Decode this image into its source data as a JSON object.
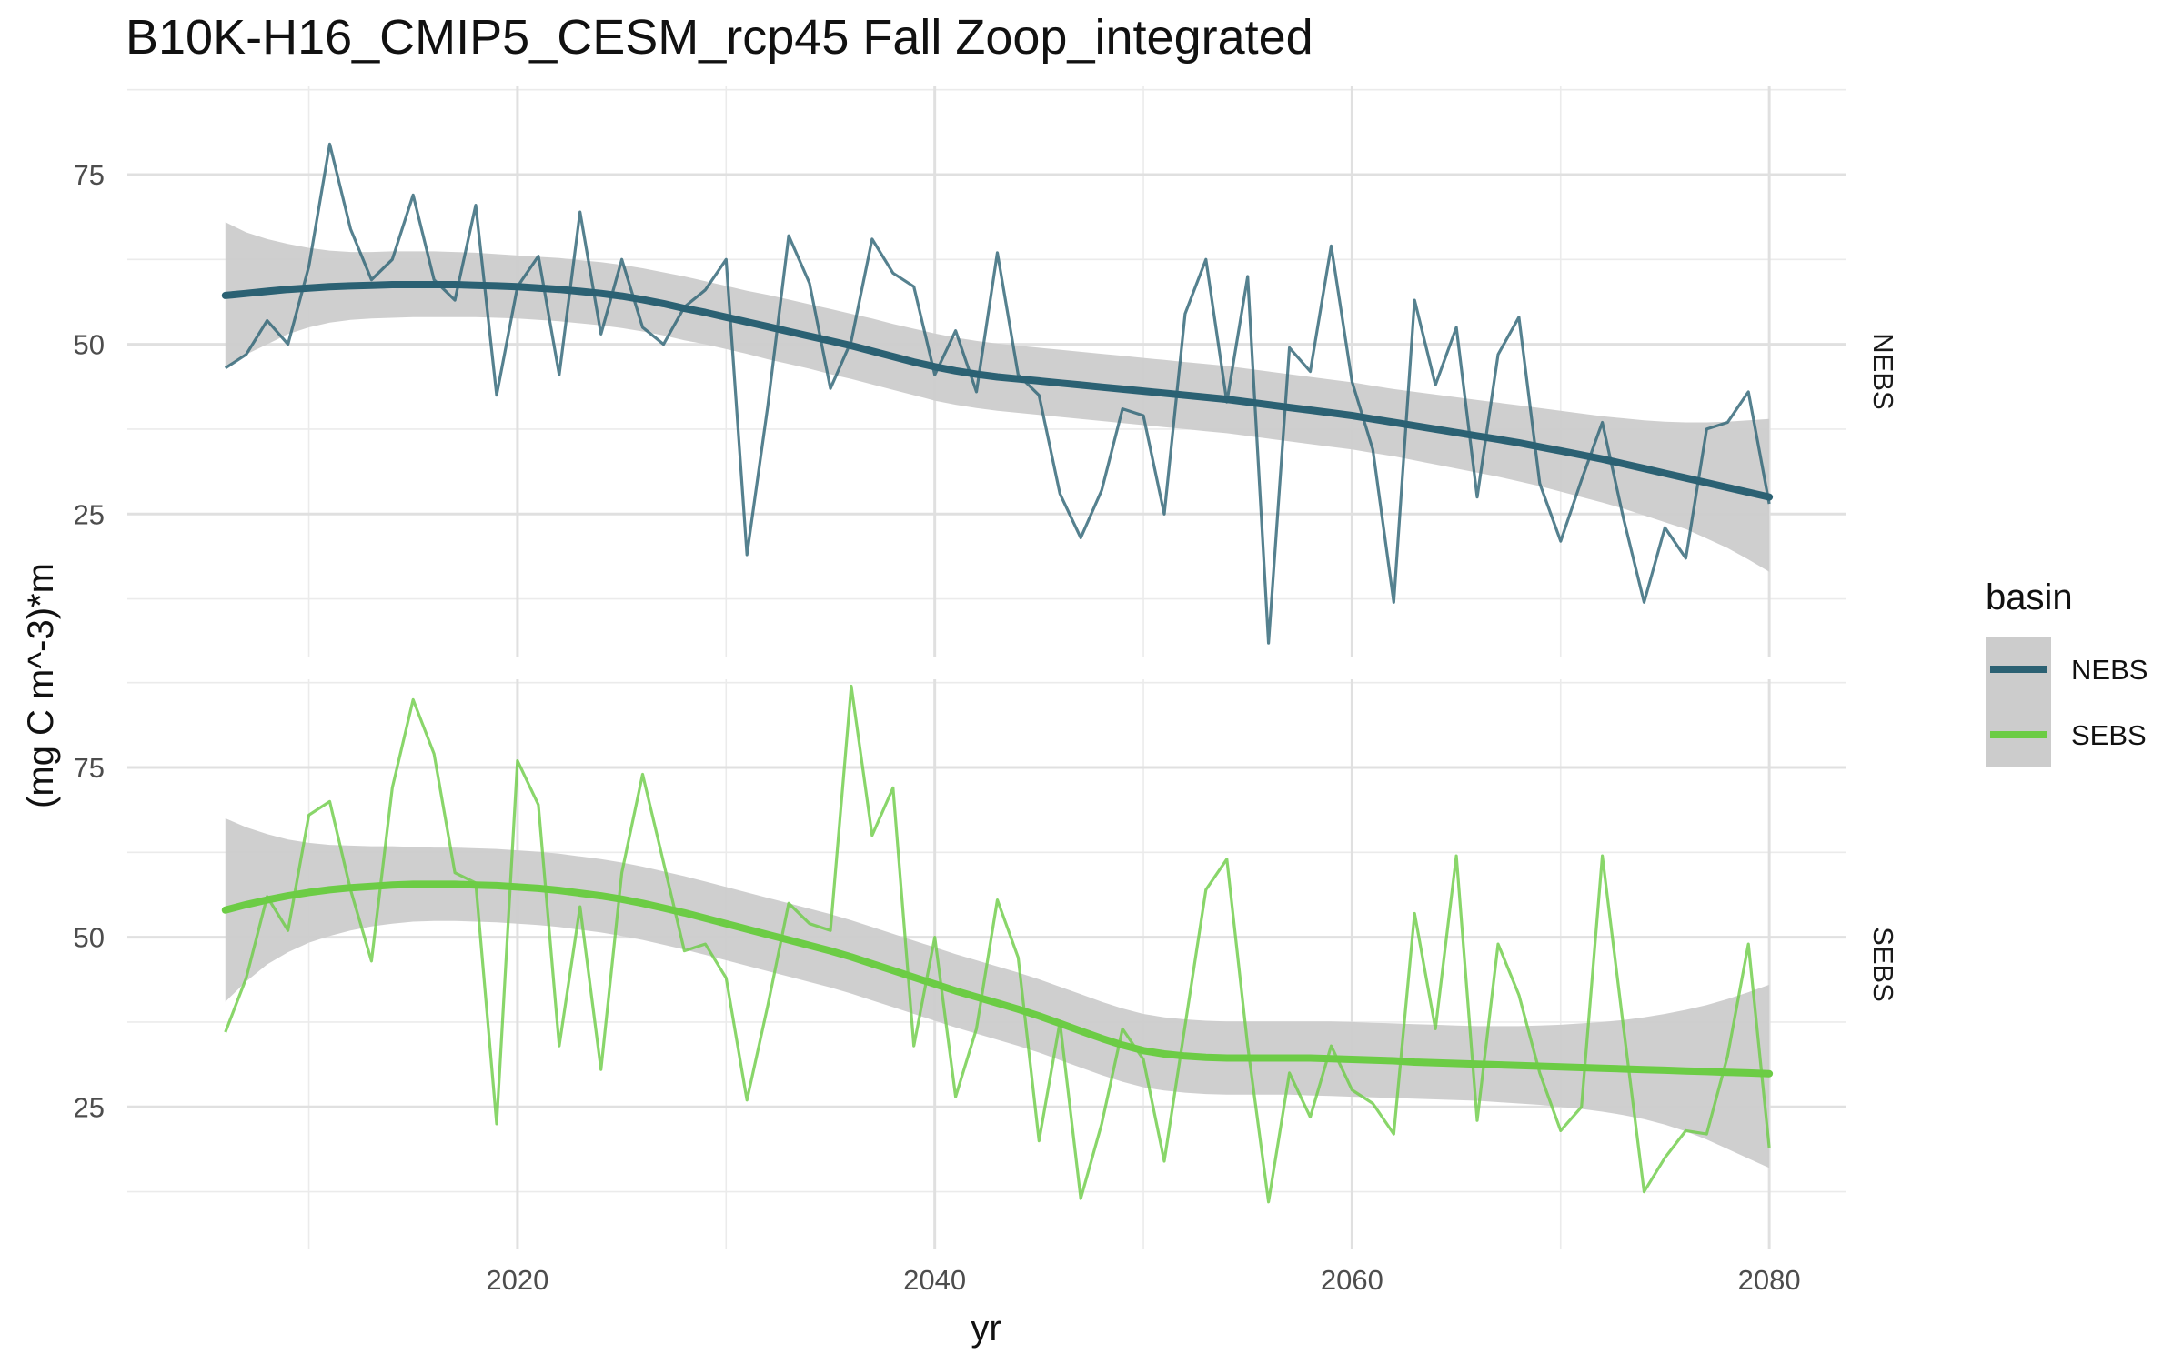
{
  "chart_data": {
    "type": "line",
    "title": "B10K-H16_CMIP5_CESM_rcp45 Fall Zoop_integrated",
    "xlabel": "yr",
    "ylabel": "(mg C m^-3)*m",
    "xlim": [
      2001.3,
      2083.7
    ],
    "ylim": [
      4,
      88
    ],
    "x_ticks": [
      2020,
      2040,
      2060,
      2080
    ],
    "y_ticks": [
      25,
      50,
      75
    ],
    "grid": true,
    "facets": [
      "NEBS",
      "SEBS"
    ],
    "legend": {
      "title": "basin",
      "position": "right",
      "entries": [
        "NEBS",
        "SEBS"
      ]
    },
    "colors": {
      "NEBS": "#2b6173",
      "SEBS": "#6ccc45",
      "band": "#cccccc"
    },
    "x": [
      2006,
      2007,
      2008,
      2009,
      2010,
      2011,
      2012,
      2013,
      2014,
      2015,
      2016,
      2017,
      2018,
      2019,
      2020,
      2021,
      2022,
      2023,
      2024,
      2025,
      2026,
      2027,
      2028,
      2029,
      2030,
      2031,
      2032,
      2033,
      2034,
      2035,
      2036,
      2037,
      2038,
      2039,
      2040,
      2041,
      2042,
      2043,
      2044,
      2045,
      2046,
      2047,
      2048,
      2049,
      2050,
      2051,
      2052,
      2053,
      2054,
      2055,
      2056,
      2057,
      2058,
      2059,
      2060,
      2061,
      2062,
      2063,
      2064,
      2065,
      2066,
      2067,
      2068,
      2069,
      2070,
      2071,
      2072,
      2073,
      2074,
      2075,
      2076,
      2077,
      2078,
      2079,
      2080
    ],
    "series": [
      {
        "name": "NEBS",
        "values": [
          46.5,
          48.5,
          53.5,
          50,
          61.5,
          79.5,
          67,
          59.5,
          62.5,
          72,
          59.5,
          56.5,
          70.5,
          42.5,
          58.5,
          63,
          45.5,
          69.5,
          51.5,
          62.5,
          52.5,
          50,
          55.5,
          58,
          62.5,
          19,
          41,
          66,
          59,
          43.5,
          50.5,
          65.5,
          60.5,
          58.5,
          45.5,
          52,
          43,
          63.5,
          45.5,
          42.5,
          28,
          21.5,
          28.5,
          40.5,
          39.5,
          25,
          54.5,
          62.5,
          41.5,
          60,
          6,
          49.5,
          46,
          64.5,
          44.5,
          34.5,
          12,
          56.5,
          44,
          52.5,
          27.5,
          48.5,
          54,
          29.5,
          21,
          30,
          38.5,
          24.5,
          12,
          23,
          18.5,
          37.5,
          38.5,
          43,
          26.5
        ],
        "smooth": [
          57.2,
          57.5,
          57.8,
          58.1,
          58.3,
          58.5,
          58.6,
          58.7,
          58.8,
          58.8,
          58.8,
          58.8,
          58.7,
          58.6,
          58.5,
          58.3,
          58.1,
          57.8,
          57.5,
          57.1,
          56.6,
          56,
          55.3,
          54.7,
          54,
          53.3,
          52.6,
          51.9,
          51.2,
          50.5,
          49.8,
          49,
          48.2,
          47.4,
          46.7,
          46.1,
          45.6,
          45.2,
          44.9,
          44.6,
          44.3,
          44,
          43.7,
          43.4,
          43.1,
          42.8,
          42.5,
          42.2,
          41.9,
          41.5,
          41.1,
          40.7,
          40.3,
          39.9,
          39.5,
          39,
          38.5,
          38,
          37.5,
          37,
          36.5,
          36,
          35.5,
          34.9,
          34.3,
          33.7,
          33.1,
          32.4,
          31.7,
          31,
          30.3,
          29.6,
          28.9,
          28.2,
          27.5
        ],
        "band_low": [
          46.5,
          48.5,
          50,
          51.5,
          52.5,
          53.2,
          53.6,
          53.8,
          53.9,
          54,
          54,
          54,
          54,
          53.9,
          53.8,
          53.6,
          53.4,
          53.1,
          52.8,
          52.4,
          51.9,
          51.3,
          50.6,
          50,
          49.3,
          48.6,
          47.8,
          47.1,
          46.4,
          45.6,
          44.9,
          44.1,
          43.3,
          42.5,
          41.7,
          41.1,
          40.6,
          40.2,
          39.9,
          39.6,
          39.3,
          39,
          38.7,
          38.4,
          38.1,
          37.8,
          37.5,
          37.2,
          36.9,
          36.5,
          36.1,
          35.7,
          35.3,
          34.9,
          34.5,
          34,
          33.5,
          32.9,
          32.3,
          31.7,
          31.1,
          30.5,
          29.8,
          29.1,
          28.3,
          27.5,
          26.7,
          25.8,
          24.8,
          23.8,
          22.8,
          21.4,
          20,
          18.3,
          16.5
        ],
        "band_high": [
          68,
          66.5,
          65.5,
          64.8,
          64.2,
          63.8,
          63.6,
          63.6,
          63.7,
          63.7,
          63.7,
          63.6,
          63.5,
          63.3,
          63.1,
          62.9,
          62.7,
          62.4,
          62.1,
          61.7,
          61.2,
          60.6,
          60,
          59.3,
          58.6,
          57.9,
          57.3,
          56.6,
          55.9,
          55.2,
          54.5,
          53.8,
          53,
          52.3,
          51.6,
          51,
          50.5,
          50.1,
          49.8,
          49.5,
          49.2,
          48.9,
          48.6,
          48.3,
          48,
          47.7,
          47.4,
          47.1,
          46.8,
          46.4,
          46,
          45.6,
          45.2,
          44.8,
          44.4,
          43.9,
          43.4,
          43,
          42.6,
          42.2,
          41.8,
          41.4,
          41,
          40.6,
          40.2,
          39.8,
          39.4,
          39.1,
          38.8,
          38.6,
          38.5,
          38.5,
          38.6,
          38.8,
          39
        ]
      },
      {
        "name": "SEBS",
        "values": [
          36,
          44,
          56,
          51,
          68,
          70,
          57,
          46.5,
          72,
          85,
          77,
          59.5,
          58,
          22.5,
          76,
          69.5,
          34,
          54.5,
          30.5,
          59.5,
          74,
          61,
          48,
          49,
          44,
          26,
          40,
          55,
          52,
          51,
          87,
          65,
          72,
          34,
          50,
          26.5,
          36.5,
          55.5,
          47,
          20,
          37.5,
          11.5,
          22.5,
          36.5,
          32,
          17,
          37,
          57,
          61.5,
          34,
          11,
          30,
          23.5,
          34,
          27.5,
          25.5,
          21,
          53.5,
          36.5,
          62,
          23,
          49,
          41.5,
          30,
          21.5,
          25,
          62,
          37,
          12.5,
          17.5,
          21.5,
          21,
          32.5,
          49,
          19
        ],
        "smooth": [
          54,
          54.8,
          55.5,
          56.1,
          56.6,
          57,
          57.3,
          57.5,
          57.7,
          57.8,
          57.8,
          57.8,
          57.7,
          57.6,
          57.4,
          57.2,
          56.9,
          56.5,
          56.1,
          55.6,
          55,
          54.3,
          53.6,
          52.8,
          52,
          51.2,
          50.4,
          49.6,
          48.8,
          48,
          47.1,
          46.1,
          45.1,
          44.1,
          43.1,
          42.1,
          41.2,
          40.3,
          39.4,
          38.4,
          37.3,
          36.2,
          35.1,
          34.1,
          33.3,
          32.8,
          32.5,
          32.3,
          32.2,
          32.2,
          32.2,
          32.2,
          32.2,
          32.1,
          32,
          31.9,
          31.8,
          31.6,
          31.5,
          31.4,
          31.3,
          31.2,
          31.1,
          31,
          30.9,
          30.8,
          30.7,
          30.6,
          30.5,
          30.4,
          30.3,
          30.2,
          30.1,
          30,
          29.9
        ],
        "band_low": [
          40.5,
          43.5,
          46,
          47.8,
          49.2,
          50.2,
          51,
          51.6,
          52,
          52.3,
          52.4,
          52.4,
          52.3,
          52.2,
          52,
          51.8,
          51.5,
          51.1,
          50.7,
          50.2,
          49.6,
          48.9,
          48.2,
          47.4,
          46.6,
          45.8,
          45,
          44.2,
          43.4,
          42.6,
          41.7,
          40.7,
          39.7,
          38.7,
          37.7,
          36.7,
          35.8,
          34.9,
          34,
          33,
          31.9,
          30.8,
          29.7,
          28.7,
          27.9,
          27.4,
          27.1,
          26.9,
          26.8,
          26.8,
          26.8,
          26.8,
          26.7,
          26.6,
          26.5,
          26.4,
          26.3,
          26.2,
          26.1,
          26,
          25.9,
          25.7,
          25.5,
          25.3,
          25,
          24.7,
          24.3,
          23.8,
          23.2,
          22.4,
          21.4,
          20.2,
          18.8,
          17.4,
          16
        ],
        "band_high": [
          67.5,
          66.2,
          65.2,
          64.4,
          63.9,
          63.6,
          63.5,
          63.4,
          63.4,
          63.3,
          63.2,
          63.2,
          63.1,
          63,
          62.8,
          62.6,
          62.3,
          61.9,
          61.5,
          61,
          60.4,
          59.7,
          59,
          58.2,
          57.4,
          56.6,
          55.8,
          55,
          54.2,
          53.4,
          52.5,
          51.5,
          50.5,
          49.5,
          48.5,
          47.5,
          46.6,
          45.7,
          44.8,
          43.8,
          42.7,
          41.6,
          40.5,
          39.5,
          38.7,
          38.2,
          37.9,
          37.7,
          37.6,
          37.6,
          37.6,
          37.6,
          37.6,
          37.6,
          37.5,
          37.4,
          37.3,
          37.2,
          37.1,
          37,
          36.9,
          36.9,
          36.9,
          37,
          37.1,
          37.3,
          37.5,
          37.8,
          38.2,
          38.7,
          39.3,
          40,
          40.9,
          41.9,
          43
        ]
      }
    ]
  }
}
